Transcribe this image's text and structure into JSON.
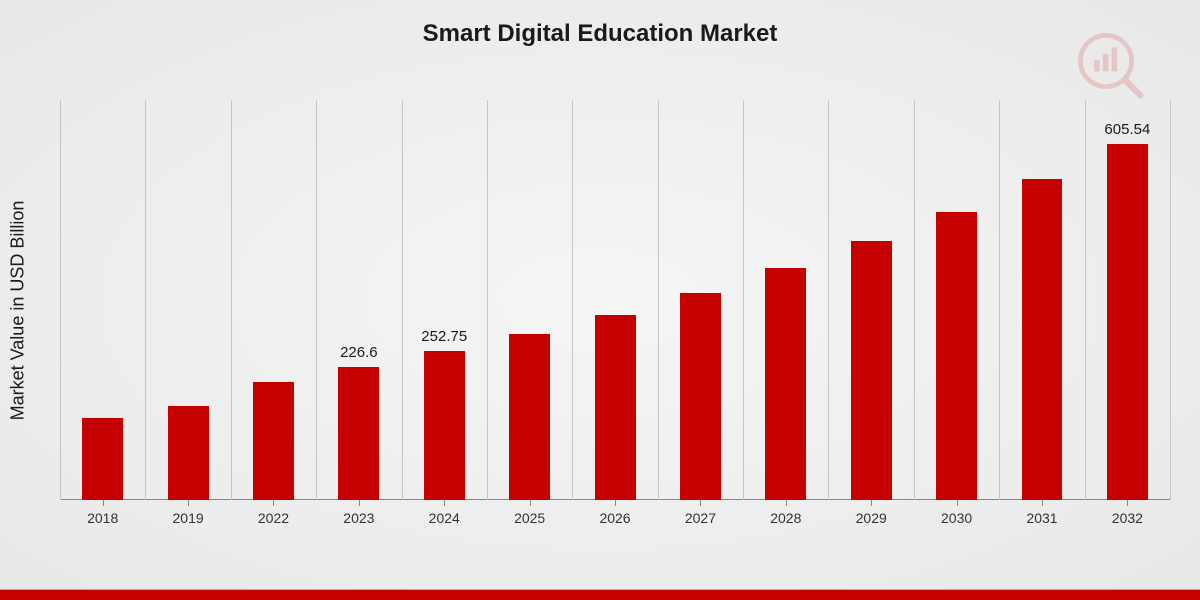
{
  "chart": {
    "type": "bar",
    "title": "Smart Digital Education Market",
    "title_fontsize": 24,
    "ylabel": "Market Value in USD Billion",
    "ylabel_fontsize": 18,
    "categories": [
      "2018",
      "2019",
      "2022",
      "2023",
      "2024",
      "2025",
      "2026",
      "2027",
      "2028",
      "2029",
      "2030",
      "2031",
      "2032"
    ],
    "values": [
      140,
      160,
      200,
      226.6,
      252.75,
      282,
      315,
      352,
      395,
      440,
      490,
      545,
      605.54
    ],
    "value_labels": [
      "",
      "",
      "",
      "226.6",
      "252.75",
      "",
      "",
      "",
      "",
      "",
      "",
      "",
      "605.54"
    ],
    "ylim": [
      0,
      680
    ],
    "bar_color": "#c40000",
    "bar_width": 0.48,
    "background_gradient_inner": "#f5f5f5",
    "background_gradient_outer": "#e8e8e8",
    "grid_color": "#c5c5c5",
    "axis_color": "#888888",
    "value_label_fontsize": 15,
    "xtick_fontsize": 14,
    "text_color": "#1a1a1a",
    "footer_bar_color": "#c40000",
    "watermark_opacity": 0.15,
    "watermark_color": "#c40000"
  }
}
